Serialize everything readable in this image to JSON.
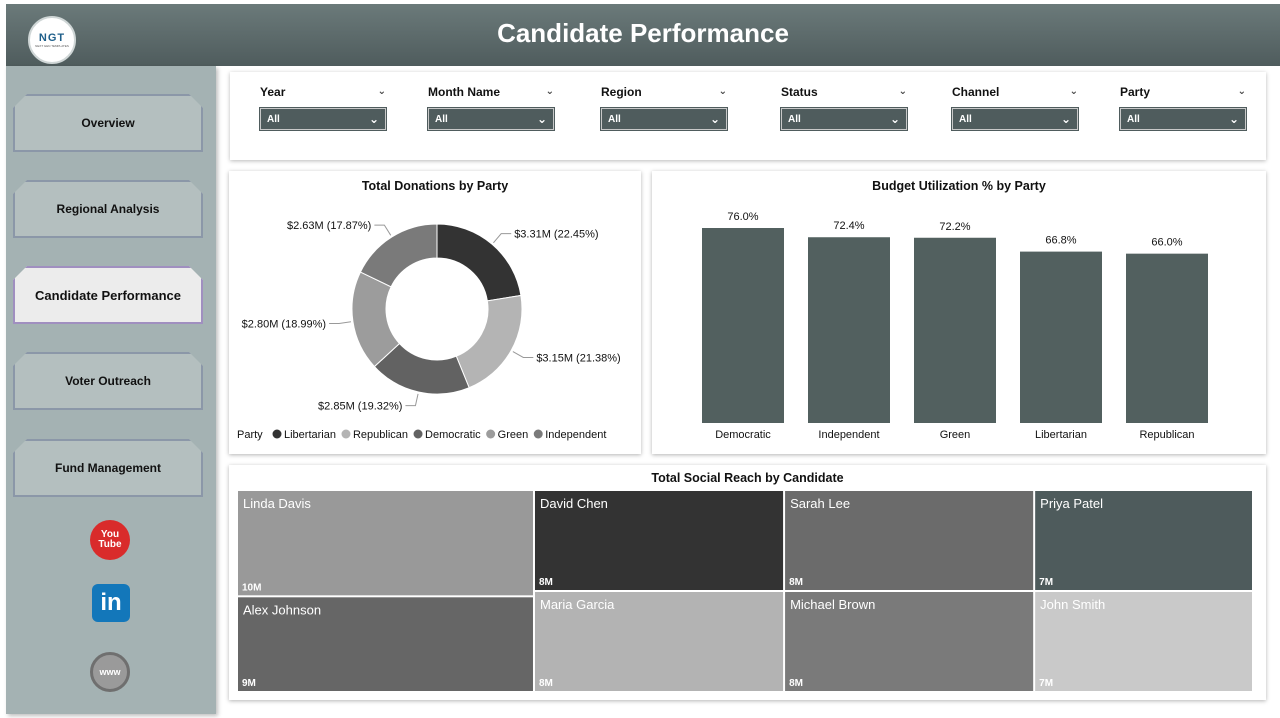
{
  "header": {
    "title": "Candidate Performance",
    "logo_text": "NGT",
    "logo_subtext": "NEXT GEN TEMPLATES"
  },
  "sidebar": {
    "items": [
      {
        "label": "Overview",
        "active": false
      },
      {
        "label": "Regional Analysis",
        "active": false
      },
      {
        "label": "Candidate Performance",
        "active": true
      },
      {
        "label": "Voter Outreach",
        "active": false
      },
      {
        "label": "Fund Management",
        "active": false
      }
    ],
    "social": [
      {
        "icon": "youtube-icon",
        "line1": "You",
        "line2": "Tube"
      },
      {
        "icon": "linkedin-icon",
        "text": "in"
      },
      {
        "icon": "globe-icon",
        "text": "www"
      }
    ]
  },
  "filters": [
    {
      "label": "Year",
      "value": "All"
    },
    {
      "label": "Month Name",
      "value": "All"
    },
    {
      "label": "Region",
      "value": "All"
    },
    {
      "label": "Status",
      "value": "All"
    },
    {
      "label": "Channel",
      "value": "All"
    },
    {
      "label": "Party",
      "value": "All"
    }
  ],
  "chart_data": [
    {
      "type": "pie",
      "title": "Total Donations by Party",
      "donut": true,
      "legend_title": "Party",
      "legend_position": "bottom-left",
      "slices": [
        {
          "name": "Libertarian",
          "value": 3.31,
          "label": "$3.31M (22.45%)",
          "color": "#333333"
        },
        {
          "name": "Republican",
          "value": 3.15,
          "label": "$3.15M (21.38%)",
          "color": "#b4b4b4"
        },
        {
          "name": "Democratic",
          "value": 2.85,
          "label": "$2.85M (19.32%)",
          "color": "#626262"
        },
        {
          "name": "Green",
          "value": 2.8,
          "label": "$2.80M (18.99%)",
          "color": "#9c9c9c"
        },
        {
          "name": "Independent",
          "value": 2.63,
          "label": "$2.63M (17.87%)",
          "color": "#7a7a7a"
        }
      ]
    },
    {
      "type": "bar",
      "title": "Budget Utilization % by Party",
      "categories": [
        "Democratic",
        "Independent",
        "Green",
        "Libertarian",
        "Republican"
      ],
      "values": [
        76.0,
        72.4,
        72.2,
        66.8,
        66.0
      ],
      "value_labels": [
        "76.0%",
        "72.4%",
        "72.2%",
        "66.8%",
        "66.0%"
      ],
      "ylim": [
        0,
        76
      ],
      "color": "#52605f",
      "grid": false
    },
    {
      "type": "treemap",
      "title": "Total Social Reach by Candidate",
      "items": [
        {
          "name": "Linda Davis",
          "value": 10,
          "label": "10M",
          "color": "#999999",
          "text_color": "#ffffff"
        },
        {
          "name": "Alex Johnson",
          "value": 9,
          "label": "9M",
          "color": "#666666",
          "text_color": "#ffffff"
        },
        {
          "name": "David Chen",
          "value": 8,
          "label": "8M",
          "color": "#333333",
          "text_color": "#ffffff"
        },
        {
          "name": "Maria Garcia",
          "value": 8,
          "label": "8M",
          "color": "#b3b3b3",
          "text_color": "#ffffff"
        },
        {
          "name": "Sarah Lee",
          "value": 8,
          "label": "8M",
          "color": "#6b6b6b",
          "text_color": "#ffffff"
        },
        {
          "name": "Michael Brown",
          "value": 8,
          "label": "8M",
          "color": "#7a7a7a",
          "text_color": "#ffffff"
        },
        {
          "name": "Priya Patel",
          "value": 7,
          "label": "7M",
          "color": "#4e5b5c",
          "text_color": "#ffffff"
        },
        {
          "name": "John Smith",
          "value": 7,
          "label": "7M",
          "color": "#c9c9c9",
          "text_color": "#ffffff"
        }
      ]
    }
  ]
}
